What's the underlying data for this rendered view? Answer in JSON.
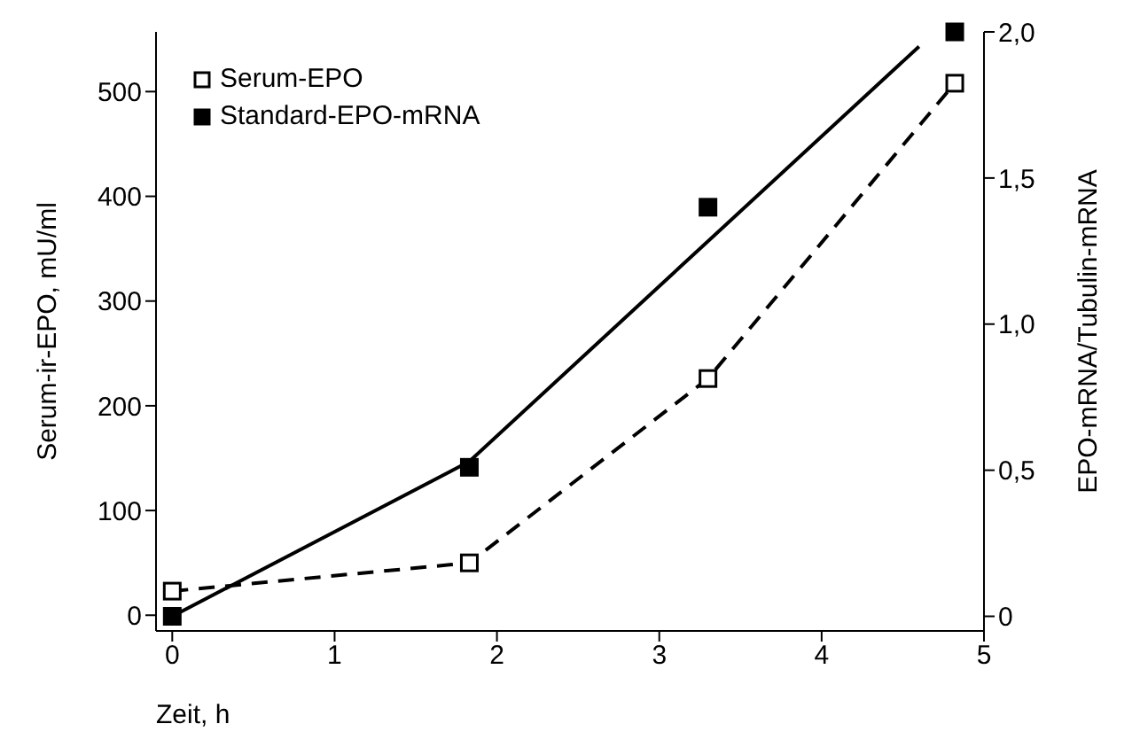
{
  "chart_data": {
    "type": "line",
    "xlabel": "Zeit, h",
    "ylabel": "Serum-ir-EPO, mU/ml",
    "y2label": "EPO-mRNA/Tubulin-mRNA",
    "xlim": [
      -0.1,
      5
    ],
    "xticks": [
      0,
      1,
      2,
      3,
      4,
      5
    ],
    "ylim": [
      -15,
      557
    ],
    "yticks": [
      0,
      100,
      200,
      300,
      400,
      500
    ],
    "y2lim": [
      -0.05,
      2.0
    ],
    "y2ticks": [
      0,
      {
        "value": 0.5,
        "label": "0,5"
      },
      {
        "value": 1.0,
        "label": "1,0"
      },
      {
        "value": 1.5,
        "label": "1,5"
      },
      {
        "value": 2.0,
        "label": "2,0"
      }
    ],
    "legend": "top left",
    "grid": false,
    "series": [
      {
        "name": "Serum-EPO",
        "type": "line",
        "color": "#000000",
        "x": [
          0,
          1.83,
          3.3,
          4.82
        ],
        "values": [
          23,
          50,
          226,
          508
        ],
        "marker": "square",
        "line_style": "dashed"
      },
      {
        "name": "Standard-EPO-mRNA",
        "type": "scatter",
        "axis": "y2",
        "color": "#000000",
        "x": [
          0,
          1.83,
          3.3,
          4.82
        ],
        "values": [
          0,
          0.51,
          1.4,
          2.0
        ],
        "marker": "square"
      },
      {
        "type": "line",
        "axis": "y2",
        "color": "#000000",
        "x": [
          0,
          1.83,
          4.6
        ],
        "values": [
          0,
          0.53,
          1.95
        ],
        "marker": "none",
        "line_style": "solid"
      }
    ]
  }
}
